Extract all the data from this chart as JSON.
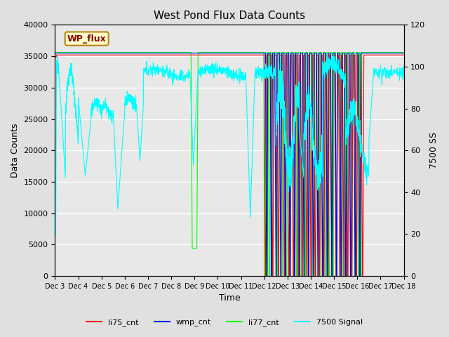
{
  "title": "West Pond Flux Data Counts",
  "xlabel": "Time",
  "ylabel_left": "Data Counts",
  "ylabel_right": "7500 SS",
  "ylim_left": [
    0,
    40000
  ],
  "ylim_right": [
    0,
    120
  ],
  "fig_bg_color": "#e0e0e0",
  "plot_bg_color": "#e8e8e8",
  "plot_band_color": "#d8d8d8",
  "watermark_text": "WP_flux",
  "xtick_labels": [
    "Dec 3",
    "Dec 4",
    "Dec 5",
    "Dec 6",
    "Dec 7",
    "Dec 8",
    "Dec 9",
    "Dec 10",
    "Dec 11",
    "Dec 12",
    "Dec 13",
    "Dec 14",
    "Dec 15",
    "Dec 16",
    "Dec 17",
    "Dec 18"
  ],
  "yticks_left": [
    0,
    5000,
    10000,
    15000,
    20000,
    25000,
    30000,
    35000,
    40000
  ],
  "yticks_right": [
    0,
    20,
    40,
    60,
    80,
    100,
    120
  ],
  "line_colors": {
    "li75": "red",
    "wmp": "blue",
    "li77": "lime",
    "signal": "cyan"
  },
  "line_width": 0.8
}
